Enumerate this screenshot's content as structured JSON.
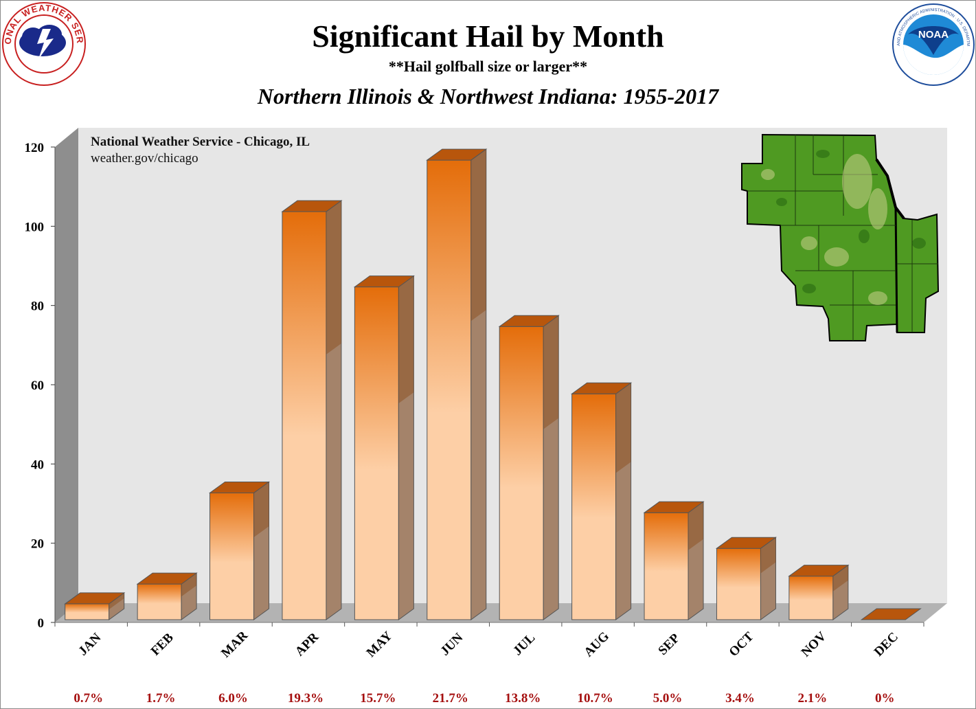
{
  "header": {
    "title": "Significant Hail by Month",
    "subtitle": "**Hail golfball size or larger**",
    "region": "Northern Illinois & Northwest Indiana:  1955-2017"
  },
  "credit": {
    "office": "National Weather Service - Chicago, IL",
    "website": "weather.gov/chicago"
  },
  "logos": {
    "left": {
      "icon": "nws-logo",
      "text": "NATIONAL WEATHER SERVICE"
    },
    "right": {
      "icon": "noaa-logo",
      "text": "NOAA",
      "ring_text": "NATIONAL OCEANIC AND ATMOSPHERIC ADMINISTRATION · U.S. DEPARTMENT OF COMMERCE"
    }
  },
  "inset_map": {
    "icon": "region-map-icon"
  },
  "colors": {
    "bar_top": "#e46d0a",
    "bar_bottom": "#fdcfa6",
    "bar_side": "#a4836a",
    "bar_cap": "#b8560c",
    "wall": "#e6e6e6",
    "floor": "#b3b3b3",
    "percent_text": "#a50f0f"
  },
  "chart_data": {
    "type": "bar",
    "categories": [
      "JAN",
      "FEB",
      "MAR",
      "APR",
      "MAY",
      "JUN",
      "JUL",
      "AUG",
      "SEP",
      "OCT",
      "NOV",
      "DEC"
    ],
    "values": [
      4,
      9,
      32,
      103,
      84,
      116,
      74,
      57,
      27,
      18,
      11,
      0
    ],
    "percent_labels": [
      "0.7%",
      "1.7%",
      "6.0%",
      "19.3%",
      "15.7%",
      "21.7%",
      "13.8%",
      "10.7%",
      "5.0%",
      "3.4%",
      "2.1%",
      "0%"
    ],
    "y_ticks": [
      0,
      20,
      40,
      60,
      80,
      100,
      120
    ],
    "ylim": [
      0,
      120
    ],
    "title": "Significant Hail by Month",
    "xlabel": "",
    "ylabel": "",
    "grid": false,
    "style": "3d-column"
  }
}
